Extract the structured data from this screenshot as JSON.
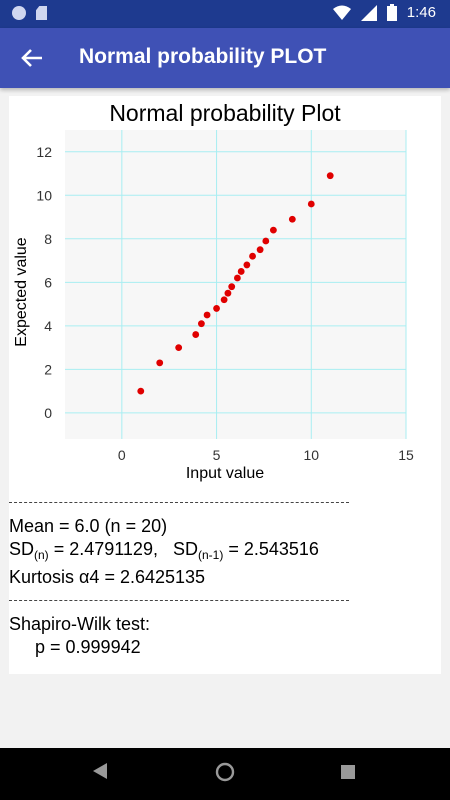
{
  "status_bar": {
    "time": "1:46",
    "icons": [
      "circle-icon",
      "sd-card-icon",
      "wifi-icon",
      "signal-icon",
      "battery-icon"
    ]
  },
  "app_bar": {
    "title": "Normal probability PLOT",
    "back_icon": "arrow-back-icon"
  },
  "chart_data": {
    "type": "scatter",
    "title": "Normal probability Plot",
    "xlabel": "Input value",
    "ylabel": "Expected value",
    "xlim": [
      -3,
      15
    ],
    "ylim": [
      -1.2,
      13
    ],
    "xticks": [
      0,
      5,
      10,
      15
    ],
    "yticks": [
      0,
      2,
      4,
      6,
      8,
      10,
      12
    ],
    "grid": true,
    "point_color": "#e00000",
    "grid_color": "#a8eef2",
    "points": [
      {
        "x": 1,
        "y": 1.0
      },
      {
        "x": 2,
        "y": 2.3
      },
      {
        "x": 3,
        "y": 3.0
      },
      {
        "x": 3.9,
        "y": 3.6
      },
      {
        "x": 4.2,
        "y": 4.1
      },
      {
        "x": 4.5,
        "y": 4.5
      },
      {
        "x": 5.0,
        "y": 4.8
      },
      {
        "x": 5.4,
        "y": 5.2
      },
      {
        "x": 5.6,
        "y": 5.5
      },
      {
        "x": 5.8,
        "y": 5.8
      },
      {
        "x": 6.1,
        "y": 6.2
      },
      {
        "x": 6.3,
        "y": 6.5
      },
      {
        "x": 6.6,
        "y": 6.8
      },
      {
        "x": 6.9,
        "y": 7.2
      },
      {
        "x": 7.3,
        "y": 7.5
      },
      {
        "x": 7.6,
        "y": 7.9
      },
      {
        "x": 8.0,
        "y": 8.4
      },
      {
        "x": 9.0,
        "y": 8.9
      },
      {
        "x": 10.0,
        "y": 9.6
      },
      {
        "x": 11.0,
        "y": 10.9
      }
    ]
  },
  "stats": {
    "separator": "-------------------------------------------------------------------",
    "mean": "Mean = 6.0    (n = 20)",
    "sd_n_label": "SD",
    "sd_n_sub": "(n)",
    "sd_n_value": " = 2.4791129,   ",
    "sd_n1_label": "SD",
    "sd_n1_sub": "(n-1)",
    "sd_n1_value": " = 2.543516",
    "kurtosis": "Kurtosis α4 = 2.6425135",
    "shapiro_title": "Shapiro-Wilk test:",
    "shapiro_p": "p = 0.999942"
  },
  "nav_bar": {
    "back": "nav-back-icon",
    "home": "nav-home-icon",
    "recent": "nav-recent-icon"
  }
}
